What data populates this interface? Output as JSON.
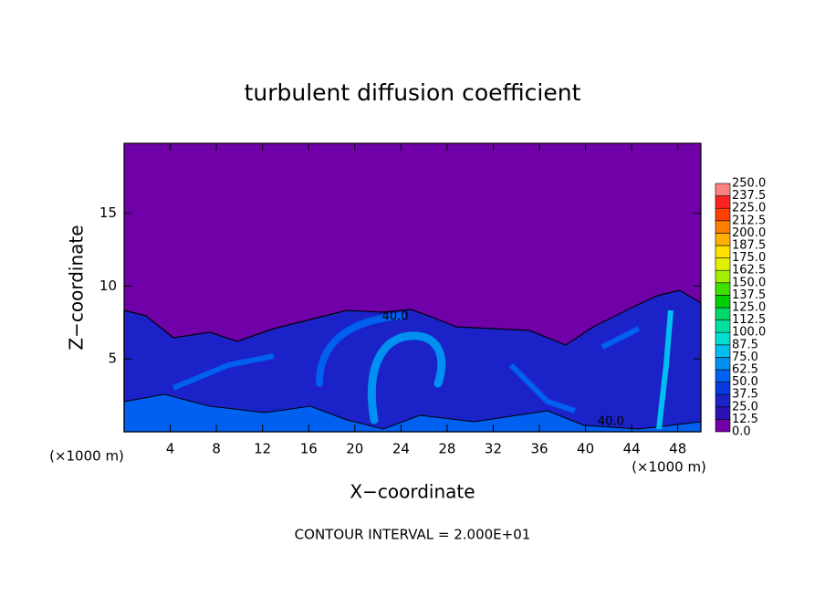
{
  "chart_data": {
    "type": "contour",
    "title": "turbulent diffusion coefficient",
    "xlabel": "X−coordinate",
    "ylabel": "Z−coordinate",
    "x_unit_label": "(×1000 m)",
    "x_unit_label_right": "(×1000 m)",
    "footnote": "CONTOUR INTERVAL = 2.000E+01",
    "xlim": [
      0,
      50
    ],
    "xticks": [
      4,
      8,
      12,
      16,
      20,
      24,
      28,
      32,
      36,
      40,
      44,
      48
    ],
    "ylim": [
      0,
      19.8
    ],
    "yticks": [
      5,
      10,
      15
    ],
    "contour_labels": [
      {
        "text": "40.0",
        "x": 23.5,
        "z": 7.9
      },
      {
        "text": "40.0",
        "x": 42.2,
        "z": 0.7
      }
    ],
    "colorbar": {
      "levels": [
        {
          "value": 0,
          "label": "0.0"
        },
        {
          "value": 12.5,
          "label": "12.5"
        },
        {
          "value": 25,
          "label": "25.0"
        },
        {
          "value": 37.5,
          "label": "37.5"
        },
        {
          "value": 50,
          "label": "50.0"
        },
        {
          "value": 62.5,
          "label": "62.5"
        },
        {
          "value": 75,
          "label": "75.0"
        },
        {
          "value": 87.5,
          "label": "87.5"
        },
        {
          "value": 100,
          "label": "100.0"
        },
        {
          "value": 112.5,
          "label": "112.5"
        },
        {
          "value": 125,
          "label": "125.0"
        },
        {
          "value": 137.5,
          "label": "137.5"
        },
        {
          "value": 150,
          "label": "150.0"
        },
        {
          "value": 162.5,
          "label": "162.5"
        },
        {
          "value": 175,
          "label": "175.0"
        },
        {
          "value": 187.5,
          "label": "187.5"
        },
        {
          "value": 200,
          "label": "200.0"
        },
        {
          "value": 212.5,
          "label": "212.5"
        },
        {
          "value": 225,
          "label": "225.0"
        },
        {
          "value": 237.5,
          "label": "237.5"
        },
        {
          "value": 250,
          "label": "250.0"
        }
      ],
      "colors": [
        "#7000a8",
        "#2c10b4",
        "#1a22c8",
        "#0838e0",
        "#0060f0",
        "#0090f0",
        "#00bff0",
        "#00e0d0",
        "#00e0a0",
        "#00d868",
        "#00d000",
        "#40e000",
        "#a0f000",
        "#e0f000",
        "#ffe000",
        "#ffb000",
        "#ff8000",
        "#ff4000",
        "#ff2020",
        "#ff8080"
      ]
    }
  }
}
